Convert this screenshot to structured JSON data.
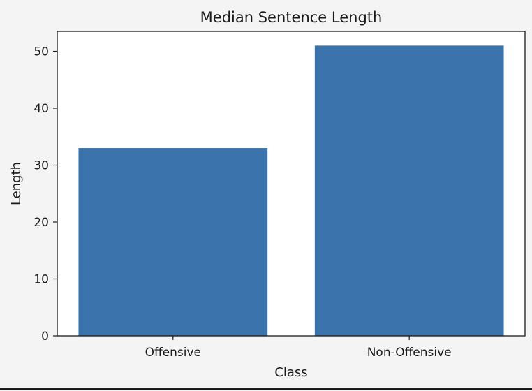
{
  "chart_data": {
    "type": "bar",
    "title": "Median Sentence Length",
    "xlabel": "Class",
    "ylabel": "Length",
    "categories": [
      "Offensive",
      "Non-Offensive"
    ],
    "values": [
      33,
      51
    ],
    "ylim": [
      0,
      53.5
    ],
    "yticks": [
      0,
      10,
      20,
      30,
      40,
      50
    ],
    "grid": false,
    "bar_color": "#3b73ac",
    "plot_background": "#ffffff",
    "figure_background": "#f4f4f4"
  }
}
